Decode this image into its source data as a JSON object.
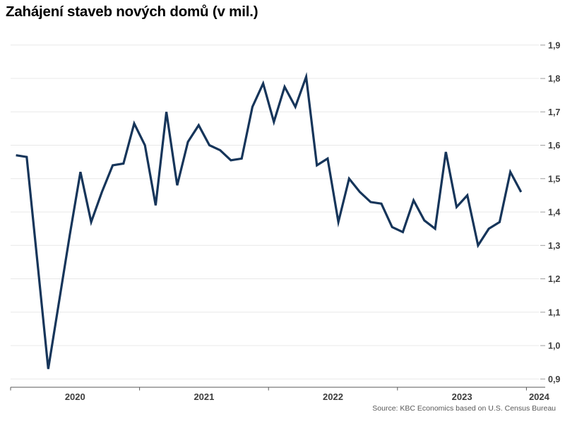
{
  "title": "Zahájení staveb nových domů (v mil.)",
  "source": "Source: KBC Economics based on U.S. Census Bureau",
  "colors": {
    "line": "#16355a",
    "grid": "#e8e8e8",
    "axis": "#595959",
    "tick_label": "#3d3d3d",
    "title": "#000000",
    "source_text": "#595959"
  },
  "chart_data": {
    "type": "line",
    "title": "Zahájení staveb nových domů (v mil.)",
    "xlabel": "",
    "ylabel": "",
    "ylim": [
      0.9,
      1.9
    ],
    "grid": "horizontal",
    "legend": "none",
    "x_tick_labels": [
      "2020",
      "2021",
      "2022",
      "2023",
      "2024"
    ],
    "y_ticks": [
      {
        "value": 0.9,
        "label": "0,9"
      },
      {
        "value": 1.0,
        "label": "1,0"
      },
      {
        "value": 1.1,
        "label": "1,1"
      },
      {
        "value": 1.2,
        "label": "1,2"
      },
      {
        "value": 1.3,
        "label": "1,3"
      },
      {
        "value": 1.4,
        "label": "1,4"
      },
      {
        "value": 1.5,
        "label": "1,5"
      },
      {
        "value": 1.6,
        "label": "1,6"
      },
      {
        "value": 1.7,
        "label": "1,7"
      },
      {
        "value": 1.8,
        "label": "1,8"
      },
      {
        "value": 1.9,
        "label": "1,9"
      }
    ],
    "x": [
      "2020-01",
      "2020-02",
      "2020-03",
      "2020-04",
      "2020-05",
      "2020-06",
      "2020-07",
      "2020-08",
      "2020-09",
      "2020-10",
      "2020-11",
      "2020-12",
      "2021-01",
      "2021-02",
      "2021-03",
      "2021-04",
      "2021-05",
      "2021-06",
      "2021-07",
      "2021-08",
      "2021-09",
      "2021-10",
      "2021-11",
      "2021-12",
      "2022-01",
      "2022-02",
      "2022-03",
      "2022-04",
      "2022-05",
      "2022-06",
      "2022-07",
      "2022-08",
      "2022-09",
      "2022-10",
      "2022-11",
      "2022-12",
      "2023-01",
      "2023-02",
      "2023-03",
      "2023-04",
      "2023-05",
      "2023-06",
      "2023-07",
      "2023-08",
      "2023-09",
      "2023-10",
      "2023-11",
      "2023-12"
    ],
    "values": [
      1.57,
      1.565,
      1.25,
      0.93,
      1.13,
      1.33,
      1.52,
      1.37,
      1.46,
      1.54,
      1.545,
      1.665,
      1.6,
      1.42,
      1.7,
      1.48,
      1.61,
      1.66,
      1.6,
      1.585,
      1.555,
      1.56,
      1.715,
      1.785,
      1.67,
      1.775,
      1.715,
      1.805,
      1.54,
      1.56,
      1.37,
      1.5,
      1.46,
      1.43,
      1.425,
      1.355,
      1.34,
      1.435,
      1.375,
      1.35,
      1.58,
      1.415,
      1.45,
      1.3,
      1.35,
      1.37,
      1.52,
      1.46
    ]
  }
}
